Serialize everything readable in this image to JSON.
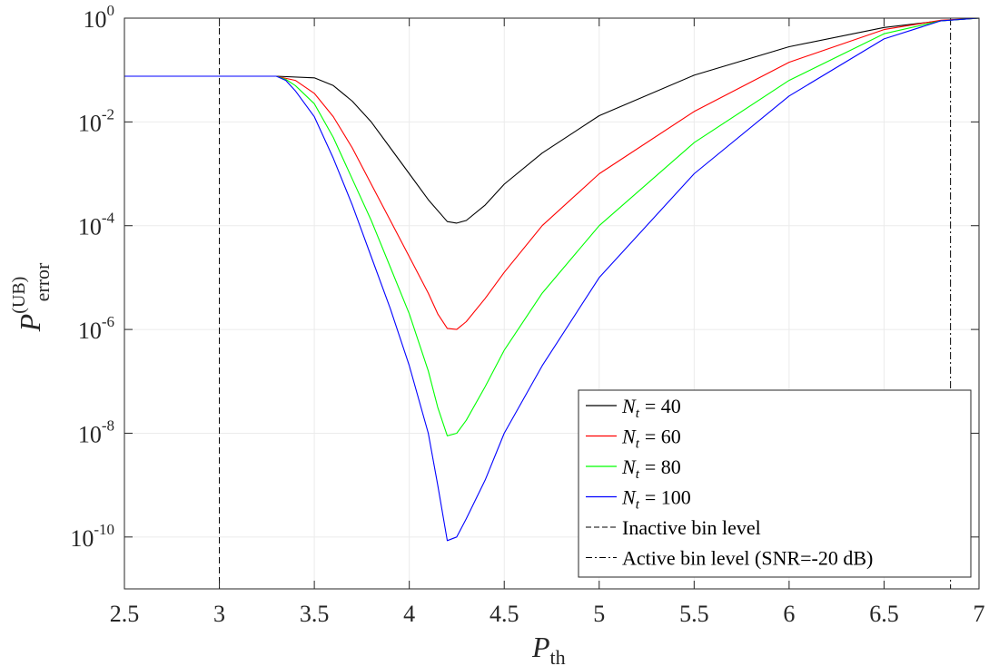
{
  "chart_data": {
    "type": "line",
    "yscale": "log",
    "xlabel": {
      "main": "P",
      "sub": "th"
    },
    "ylabel": {
      "main": "P",
      "sub": "error",
      "sup": "(UB)"
    },
    "xlim": [
      2.5,
      7
    ],
    "ylim_exp": [
      -11,
      0
    ],
    "x_ticks": [
      "2.5",
      "3",
      "3.5",
      "4",
      "4.5",
      "5",
      "5.5",
      "6",
      "6.5",
      "7"
    ],
    "x_tick_values": [
      2.5,
      3,
      3.5,
      4,
      4.5,
      5,
      5.5,
      6,
      6.5,
      7
    ],
    "y_ticks": [
      {
        "exp_value": 0,
        "base": "10",
        "exp": "0"
      },
      {
        "exp_value": -2,
        "base": "10",
        "exp": "-2"
      },
      {
        "exp_value": -4,
        "base": "10",
        "exp": "-4"
      },
      {
        "exp_value": -6,
        "base": "10",
        "exp": "-6"
      },
      {
        "exp_value": -8,
        "base": "10",
        "exp": "-8"
      },
      {
        "exp_value": -10,
        "base": "10",
        "exp": "-10"
      }
    ],
    "grid": true,
    "series": [
      {
        "name": "Nt = 40",
        "var": "N",
        "sub": "t",
        "eq": "= 40",
        "color": "#000000",
        "points": [
          [
            2.5,
            -1.12
          ],
          [
            3.3,
            -1.12
          ],
          [
            3.5,
            -1.15
          ],
          [
            3.6,
            -1.3
          ],
          [
            3.7,
            -1.6
          ],
          [
            3.8,
            -2.0
          ],
          [
            3.9,
            -2.5
          ],
          [
            4.0,
            -3.0
          ],
          [
            4.1,
            -3.5
          ],
          [
            4.2,
            -3.92
          ],
          [
            4.25,
            -3.95
          ],
          [
            4.3,
            -3.9
          ],
          [
            4.4,
            -3.6
          ],
          [
            4.5,
            -3.2
          ],
          [
            4.7,
            -2.6
          ],
          [
            5.0,
            -1.88
          ],
          [
            5.5,
            -1.1
          ],
          [
            6.0,
            -0.55
          ],
          [
            6.5,
            -0.18
          ],
          [
            6.8,
            -0.05
          ],
          [
            7.0,
            0
          ]
        ]
      },
      {
        "name": "Nt = 60",
        "var": "N",
        "sub": "t",
        "eq": "= 60",
        "color": "#ff0000",
        "points": [
          [
            2.5,
            -1.12
          ],
          [
            3.3,
            -1.12
          ],
          [
            3.4,
            -1.2
          ],
          [
            3.5,
            -1.45
          ],
          [
            3.6,
            -1.9
          ],
          [
            3.7,
            -2.5
          ],
          [
            3.8,
            -3.2
          ],
          [
            3.9,
            -3.9
          ],
          [
            4.0,
            -4.6
          ],
          [
            4.1,
            -5.3
          ],
          [
            4.15,
            -5.7
          ],
          [
            4.2,
            -5.98
          ],
          [
            4.25,
            -6.0
          ],
          [
            4.3,
            -5.85
          ],
          [
            4.4,
            -5.4
          ],
          [
            4.5,
            -4.9
          ],
          [
            4.7,
            -4.0
          ],
          [
            5.0,
            -3.0
          ],
          [
            5.5,
            -1.8
          ],
          [
            6.0,
            -0.85
          ],
          [
            6.5,
            -0.22
          ],
          [
            6.8,
            -0.04
          ],
          [
            7.0,
            0
          ]
        ]
      },
      {
        "name": "Nt = 80",
        "var": "N",
        "sub": "t",
        "eq": "= 80",
        "color": "#00ff00",
        "points": [
          [
            2.5,
            -1.12
          ],
          [
            3.3,
            -1.12
          ],
          [
            3.35,
            -1.18
          ],
          [
            3.4,
            -1.3
          ],
          [
            3.5,
            -1.65
          ],
          [
            3.6,
            -2.3
          ],
          [
            3.7,
            -3.1
          ],
          [
            3.8,
            -3.9
          ],
          [
            3.9,
            -4.8
          ],
          [
            4.0,
            -5.7
          ],
          [
            4.1,
            -6.8
          ],
          [
            4.15,
            -7.5
          ],
          [
            4.2,
            -8.05
          ],
          [
            4.25,
            -8.0
          ],
          [
            4.3,
            -7.75
          ],
          [
            4.4,
            -7.1
          ],
          [
            4.5,
            -6.4
          ],
          [
            4.7,
            -5.3
          ],
          [
            5.0,
            -4.0
          ],
          [
            5.5,
            -2.4
          ],
          [
            6.0,
            -1.2
          ],
          [
            6.5,
            -0.3
          ],
          [
            6.8,
            -0.05
          ],
          [
            7.0,
            0
          ]
        ]
      },
      {
        "name": "Nt = 100",
        "var": "N",
        "sub": "t",
        "eq": "= 100",
        "color": "#0000ff",
        "points": [
          [
            2.5,
            -1.12
          ],
          [
            3.3,
            -1.12
          ],
          [
            3.35,
            -1.2
          ],
          [
            3.4,
            -1.4
          ],
          [
            3.5,
            -1.9
          ],
          [
            3.6,
            -2.7
          ],
          [
            3.7,
            -3.6
          ],
          [
            3.8,
            -4.6
          ],
          [
            3.9,
            -5.6
          ],
          [
            4.0,
            -6.7
          ],
          [
            4.1,
            -8.0
          ],
          [
            4.15,
            -9.0
          ],
          [
            4.2,
            -10.07
          ],
          [
            4.25,
            -10.0
          ],
          [
            4.3,
            -9.65
          ],
          [
            4.4,
            -8.9
          ],
          [
            4.5,
            -8.0
          ],
          [
            4.7,
            -6.7
          ],
          [
            5.0,
            -5.0
          ],
          [
            5.5,
            -3.0
          ],
          [
            6.0,
            -1.5
          ],
          [
            6.5,
            -0.4
          ],
          [
            6.8,
            -0.05
          ],
          [
            7.0,
            0
          ]
        ]
      }
    ],
    "reference_lines": [
      {
        "name": "Inactive bin level",
        "x": 3.0,
        "style": "dashed",
        "color": "#000000"
      },
      {
        "name": "Active bin level (SNR=-20 dB)",
        "x": 6.85,
        "style": "dashdot",
        "color": "#000000"
      }
    ],
    "legend_position": "bottom-right"
  }
}
